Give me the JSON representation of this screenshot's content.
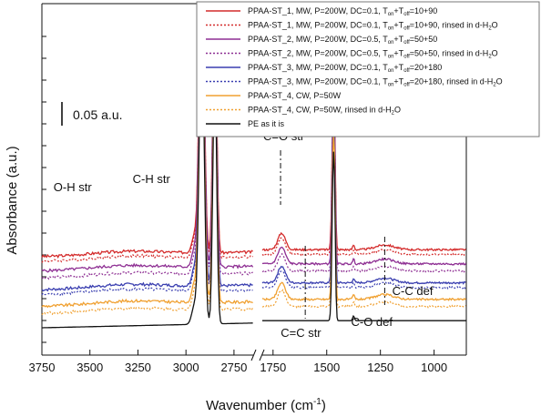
{
  "chart_data": {
    "type": "line",
    "xlabel": "Wavenumber (cm",
    "xlabel_sup": "-1",
    "xlabel_end": ")",
    "ylabel": "Absorbance (a.u.)",
    "x_axis": {
      "broken": true,
      "segments": [
        {
          "range": [
            3750,
            2650
          ],
          "ticks": [
            "3750",
            "3500",
            "3250",
            "3000",
            "2750"
          ]
        },
        {
          "range": [
            1800,
            850
          ],
          "ticks": [
            "1750",
            "1500",
            "1250",
            "1000"
          ]
        }
      ]
    },
    "scale_bar_label": "0.05 a.u.",
    "legend": {
      "placement": "top-right",
      "entries": [
        {
          "pre": "PPAA-ST_1, MW, P=200W, DC=0.1, T",
          "s1": "on",
          "mid": "+T",
          "s2": "off",
          "post": "=10+90",
          "color": "#d42b2b",
          "dash": false
        },
        {
          "pre": "PPAA-ST_1, MW, P=200W, DC=0.1, T",
          "s1": "on",
          "mid": "+T",
          "s2": "off",
          "post": "=10+90, rinsed in d-H",
          "s3": "2",
          "end": "O",
          "color": "#d42b2b",
          "dash": true
        },
        {
          "pre": "PPAA-ST_2, MW, P=200W, DC=0.5, T",
          "s1": "on",
          "mid": "+T",
          "s2": "off",
          "post": "=50+50",
          "color": "#8e2f93",
          "dash": false
        },
        {
          "pre": "PPAA-ST_2, MW, P=200W, DC=0.5, T",
          "s1": "on",
          "mid": "+T",
          "s2": "off",
          "post": "=50+50, rinsed in d-H",
          "s3": "2",
          "end": "O",
          "color": "#8e2f93",
          "dash": true
        },
        {
          "pre": "PPAA-ST_3, MW, P=200W, DC=0.1, T",
          "s1": "on",
          "mid": "+T",
          "s2": "off",
          "post": "=20+180",
          "color": "#3a3fb0",
          "dash": false
        },
        {
          "pre": "PPAA-ST_3, MW, P=200W, DC=0.1, T",
          "s1": "on",
          "mid": "+T",
          "s2": "off",
          "post": "=20+180, rinsed in d-H",
          "s3": "2",
          "end": "O",
          "color": "#3a3fb0",
          "dash": true
        },
        {
          "pre": "PPAA-ST_4, CW, P=50W",
          "color": "#f0a030",
          "dash": false
        },
        {
          "pre": "PPAA-ST_4, CW, P=50W, rinsed in d-H",
          "s3": "2",
          "end": "O",
          "color": "#f0a030",
          "dash": true
        },
        {
          "pre": "PE as it is",
          "color": "#111111",
          "dash": false
        }
      ]
    },
    "annotations": [
      {
        "text": "O-H str",
        "at_wavenumber": 3590
      },
      {
        "text": "C-H str",
        "at_wavenumber": 3180
      },
      {
        "text": "C=O str",
        "at_wavenumber": 1700
      },
      {
        "text": "C=C str",
        "at_wavenumber": 1620
      },
      {
        "text": "C-O def",
        "at_wavenumber": 1290
      },
      {
        "text": "C-C def",
        "at_wavenumber": 1100
      }
    ],
    "series_baselines_au": [
      0.42,
      0.4,
      0.36,
      0.33,
      0.28,
      0.26,
      0.21,
      0.18,
      0.12
    ],
    "y_unit_per_scale_bar": 0.05
  }
}
